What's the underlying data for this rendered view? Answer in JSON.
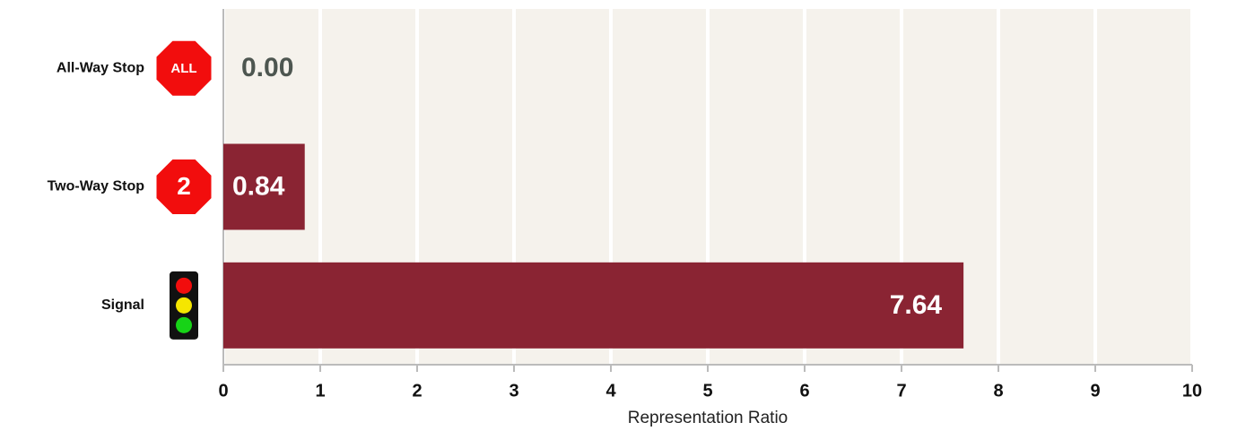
{
  "chart_data": {
    "type": "bar",
    "orientation": "horizontal",
    "categories": [
      "All-Way Stop",
      "Two-Way Stop",
      "Signal"
    ],
    "icons": [
      {
        "shape": "stop",
        "label": "ALL"
      },
      {
        "shape": "stop",
        "label": "2"
      },
      {
        "shape": "signal"
      }
    ],
    "values": [
      0,
      0.84,
      7.64
    ],
    "value_labels": [
      "0.00",
      "0.84",
      "7.64"
    ],
    "color": "#8a2433",
    "x_label": "Representation Ratio",
    "xlim": [
      0,
      10
    ],
    "xticks": [
      0,
      1,
      2,
      3,
      4,
      5,
      6,
      7,
      8,
      9,
      10
    ],
    "grid": true
  }
}
